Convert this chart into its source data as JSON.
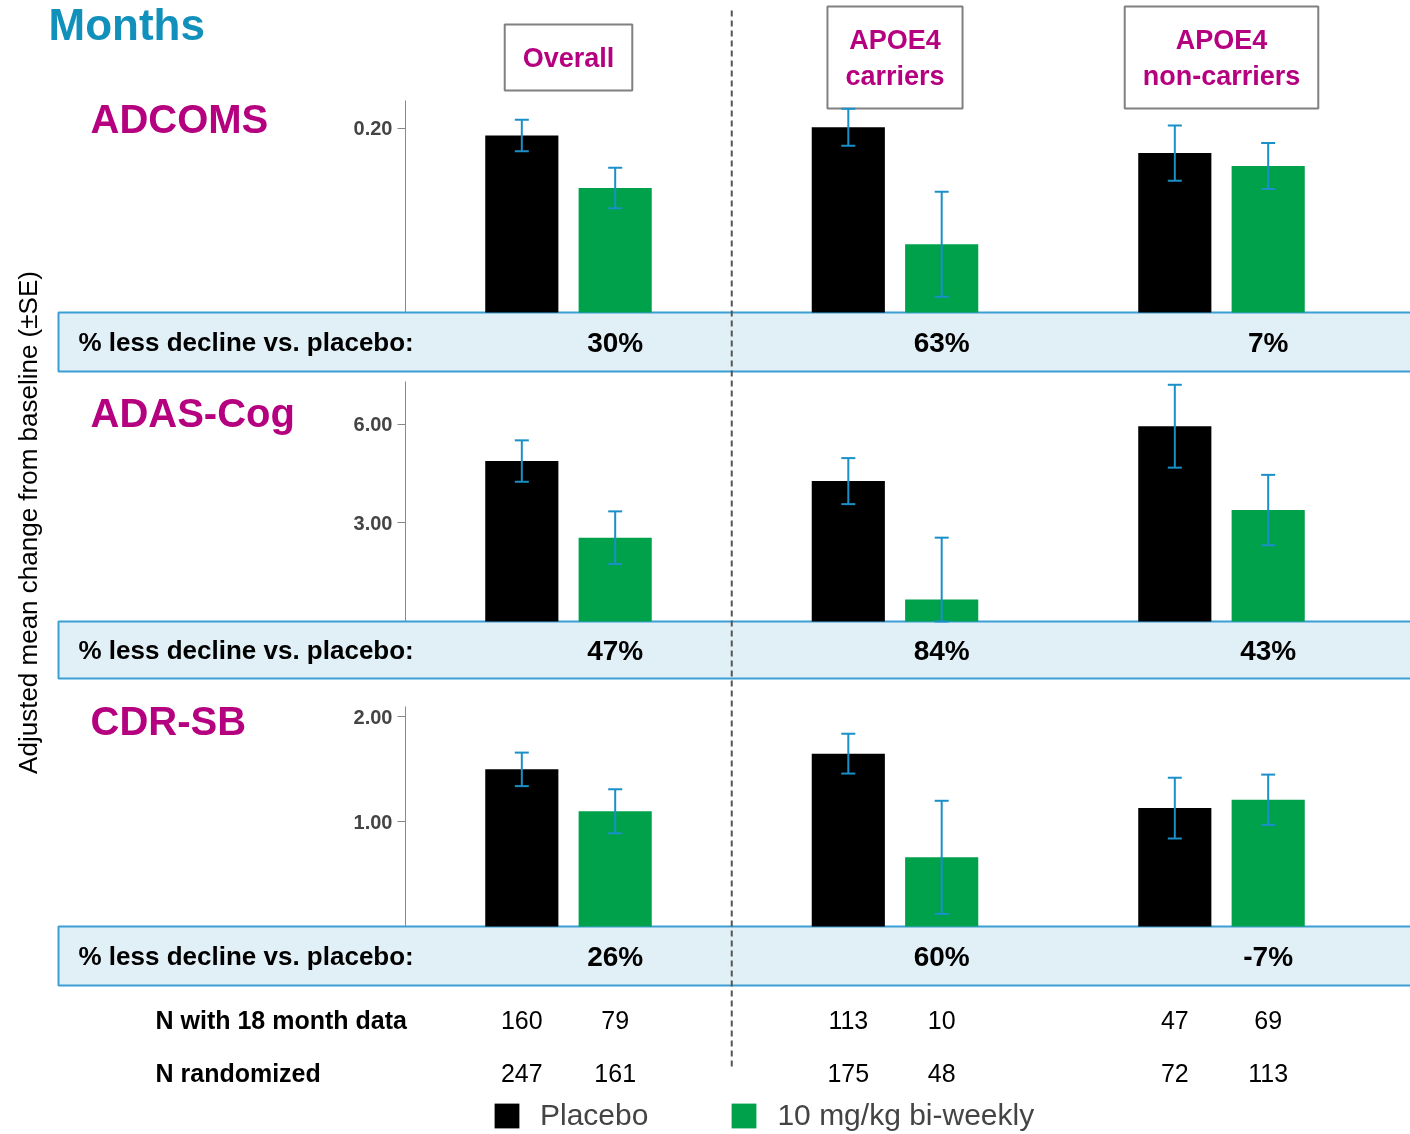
{
  "chart_data": [
    {
      "type": "other",
      "title": "Months"
    },
    {
      "type": "bar",
      "title": "ADCOMS",
      "categories": [
        "Overall",
        "APOE4 carriers",
        "APOE4 non-carriers"
      ],
      "ylim": [
        0,
        0.23
      ],
      "yticks": [
        {
          "value": 0.2,
          "label": "0.20"
        }
      ],
      "series": [
        {
          "color": "#000000",
          "values": [
            0.192,
            0.201,
            0.173
          ],
          "errors": [
            0.017,
            0.02,
            0.03
          ]
        },
        {
          "color": "#00a14b",
          "values": [
            0.135,
            0.074,
            0.159
          ],
          "errors": [
            0.022,
            0.057,
            0.025
          ]
        }
      ],
      "annotations": [
        "% less decline vs. placebo:",
        "30%",
        "63%",
        "7%"
      ]
    },
    {
      "type": "bar",
      "title": "ADAS-Cog",
      "ylabel": "Adjusted mean change from baseline (±SE)",
      "tick_labels": "y",
      "ylim": [
        0,
        7.3
      ],
      "yticks": [
        {
          "value": 3,
          "label": "3.00"
        },
        {
          "value": 6,
          "label": "6.00"
        }
      ],
      "series": [
        {
          "color": "#000000",
          "values": [
            4.88,
            4.27,
            5.94
          ],
          "errors": [
            0.63,
            0.7,
            1.26
          ]
        },
        {
          "color": "#00a14b",
          "values": [
            2.55,
            0.67,
            3.39
          ],
          "errors": [
            0.8,
            [
              0,
              2.55
            ],
            1.07
          ]
        }
      ],
      "annotations": [
        "% less decline vs. placebo:",
        "47%",
        "84%",
        "43%"
      ]
    },
    {
      "type": "bar",
      "title": "CDR-SB",
      "tick_labels": "y",
      "ylim": [
        0,
        2.1
      ],
      "yticks": [
        {
          "value": 1,
          "label": "1.00"
        },
        {
          "value": 2,
          "label": "2.00"
        }
      ],
      "legend": "bottom",
      "series": [
        {
          "name": "Placebo",
          "color": "#000000",
          "values": [
            1.5,
            1.65,
            1.13
          ],
          "errors": [
            0.16,
            0.19,
            0.29
          ]
        },
        {
          "name": "10 mg/kg bi-weekly",
          "color": "#00a14b",
          "values": [
            1.1,
            0.66,
            1.21
          ],
          "errors": [
            0.21,
            0.54,
            0.24
          ]
        }
      ],
      "annotations": [
        "% less decline vs. placebo:",
        "26%",
        "60%",
        "-7%"
      ]
    },
    {
      "type": "other",
      "annotations": [
        "N with 18 month data",
        "160",
        "79",
        "113",
        "10",
        "47",
        "69",
        "N randomized",
        "247",
        "161",
        "175",
        "48",
        "72",
        "113"
      ]
    }
  ]
}
